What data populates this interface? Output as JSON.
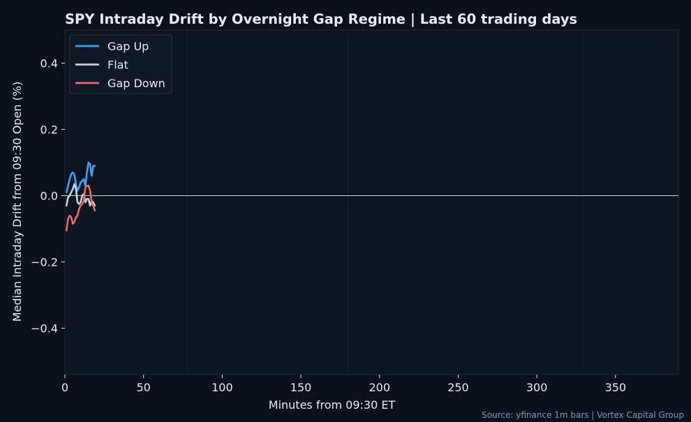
{
  "colors": {
    "background": "#0b111a",
    "plot_background": "#0d1520",
    "text": "#e8edf3",
    "source_text": "#8096b8",
    "zero_line": "#cfd6df",
    "session_marker": "#163026",
    "gap_up": "#3ea3f7",
    "flat": "#cfd3d8",
    "gap_down": "#ee6a6a"
  },
  "chart_data": {
    "type": "line",
    "title": "SPY Intraday Drift by Overnight Gap Regime  |  Last 60 trading days",
    "xlabel": "Minutes from 09:30 ET",
    "ylabel": "Median Intraday Drift from 09:30 Open (%)",
    "xlim": [
      0,
      390
    ],
    "ylim": [
      -0.54,
      0.5
    ],
    "xticks": [
      0,
      50,
      100,
      150,
      200,
      250,
      300,
      350
    ],
    "yticks": [
      -0.4,
      -0.2,
      0.0,
      0.2,
      0.4
    ],
    "ytick_labels": [
      "−0.4",
      "−0.2",
      "0.0",
      "0.2",
      "0.4"
    ],
    "reference_line_y": 0.0,
    "session_markers_x": [
      78,
      180,
      330
    ],
    "legend_position": "top-left",
    "grid": false,
    "series": [
      {
        "name": "Gap Up",
        "color": "#3ea3f7",
        "x": [
          1,
          2,
          3,
          4,
          5,
          6,
          7,
          8,
          9,
          10,
          11,
          12,
          13,
          14,
          15,
          16,
          17,
          18,
          19
        ],
        "y": [
          0.01,
          0.03,
          0.05,
          0.065,
          0.07,
          0.065,
          0.035,
          0.015,
          0.025,
          0.04,
          0.045,
          0.05,
          0.03,
          0.07,
          0.1,
          0.095,
          0.06,
          0.09,
          0.09
        ]
      },
      {
        "name": "Flat",
        "color": "#cfd3d8",
        "x": [
          1,
          2,
          3,
          4,
          5,
          6,
          7,
          8,
          9,
          10,
          11,
          12,
          13,
          14,
          15,
          16,
          17,
          18,
          19
        ],
        "y": [
          -0.03,
          -0.005,
          0.0,
          0.01,
          0.02,
          0.035,
          0.02,
          -0.02,
          -0.025,
          -0.02,
          0.0,
          0.005,
          -0.02,
          -0.01,
          -0.01,
          -0.03,
          -0.015,
          -0.02,
          -0.03
        ]
      },
      {
        "name": "Gap Down",
        "color": "#ee6a6a",
        "x": [
          1,
          2,
          3,
          4,
          5,
          6,
          7,
          8,
          9,
          10,
          11,
          12,
          13,
          14,
          15,
          16,
          17,
          18,
          19
        ],
        "y": [
          -0.105,
          -0.07,
          -0.06,
          -0.065,
          -0.085,
          -0.08,
          -0.065,
          -0.06,
          -0.04,
          -0.03,
          -0.025,
          -0.015,
          0.025,
          0.03,
          0.03,
          0.015,
          -0.02,
          -0.03,
          -0.045
        ]
      }
    ],
    "source": "Source: yfinance 1m bars  |  Vortex Capital Group"
  }
}
